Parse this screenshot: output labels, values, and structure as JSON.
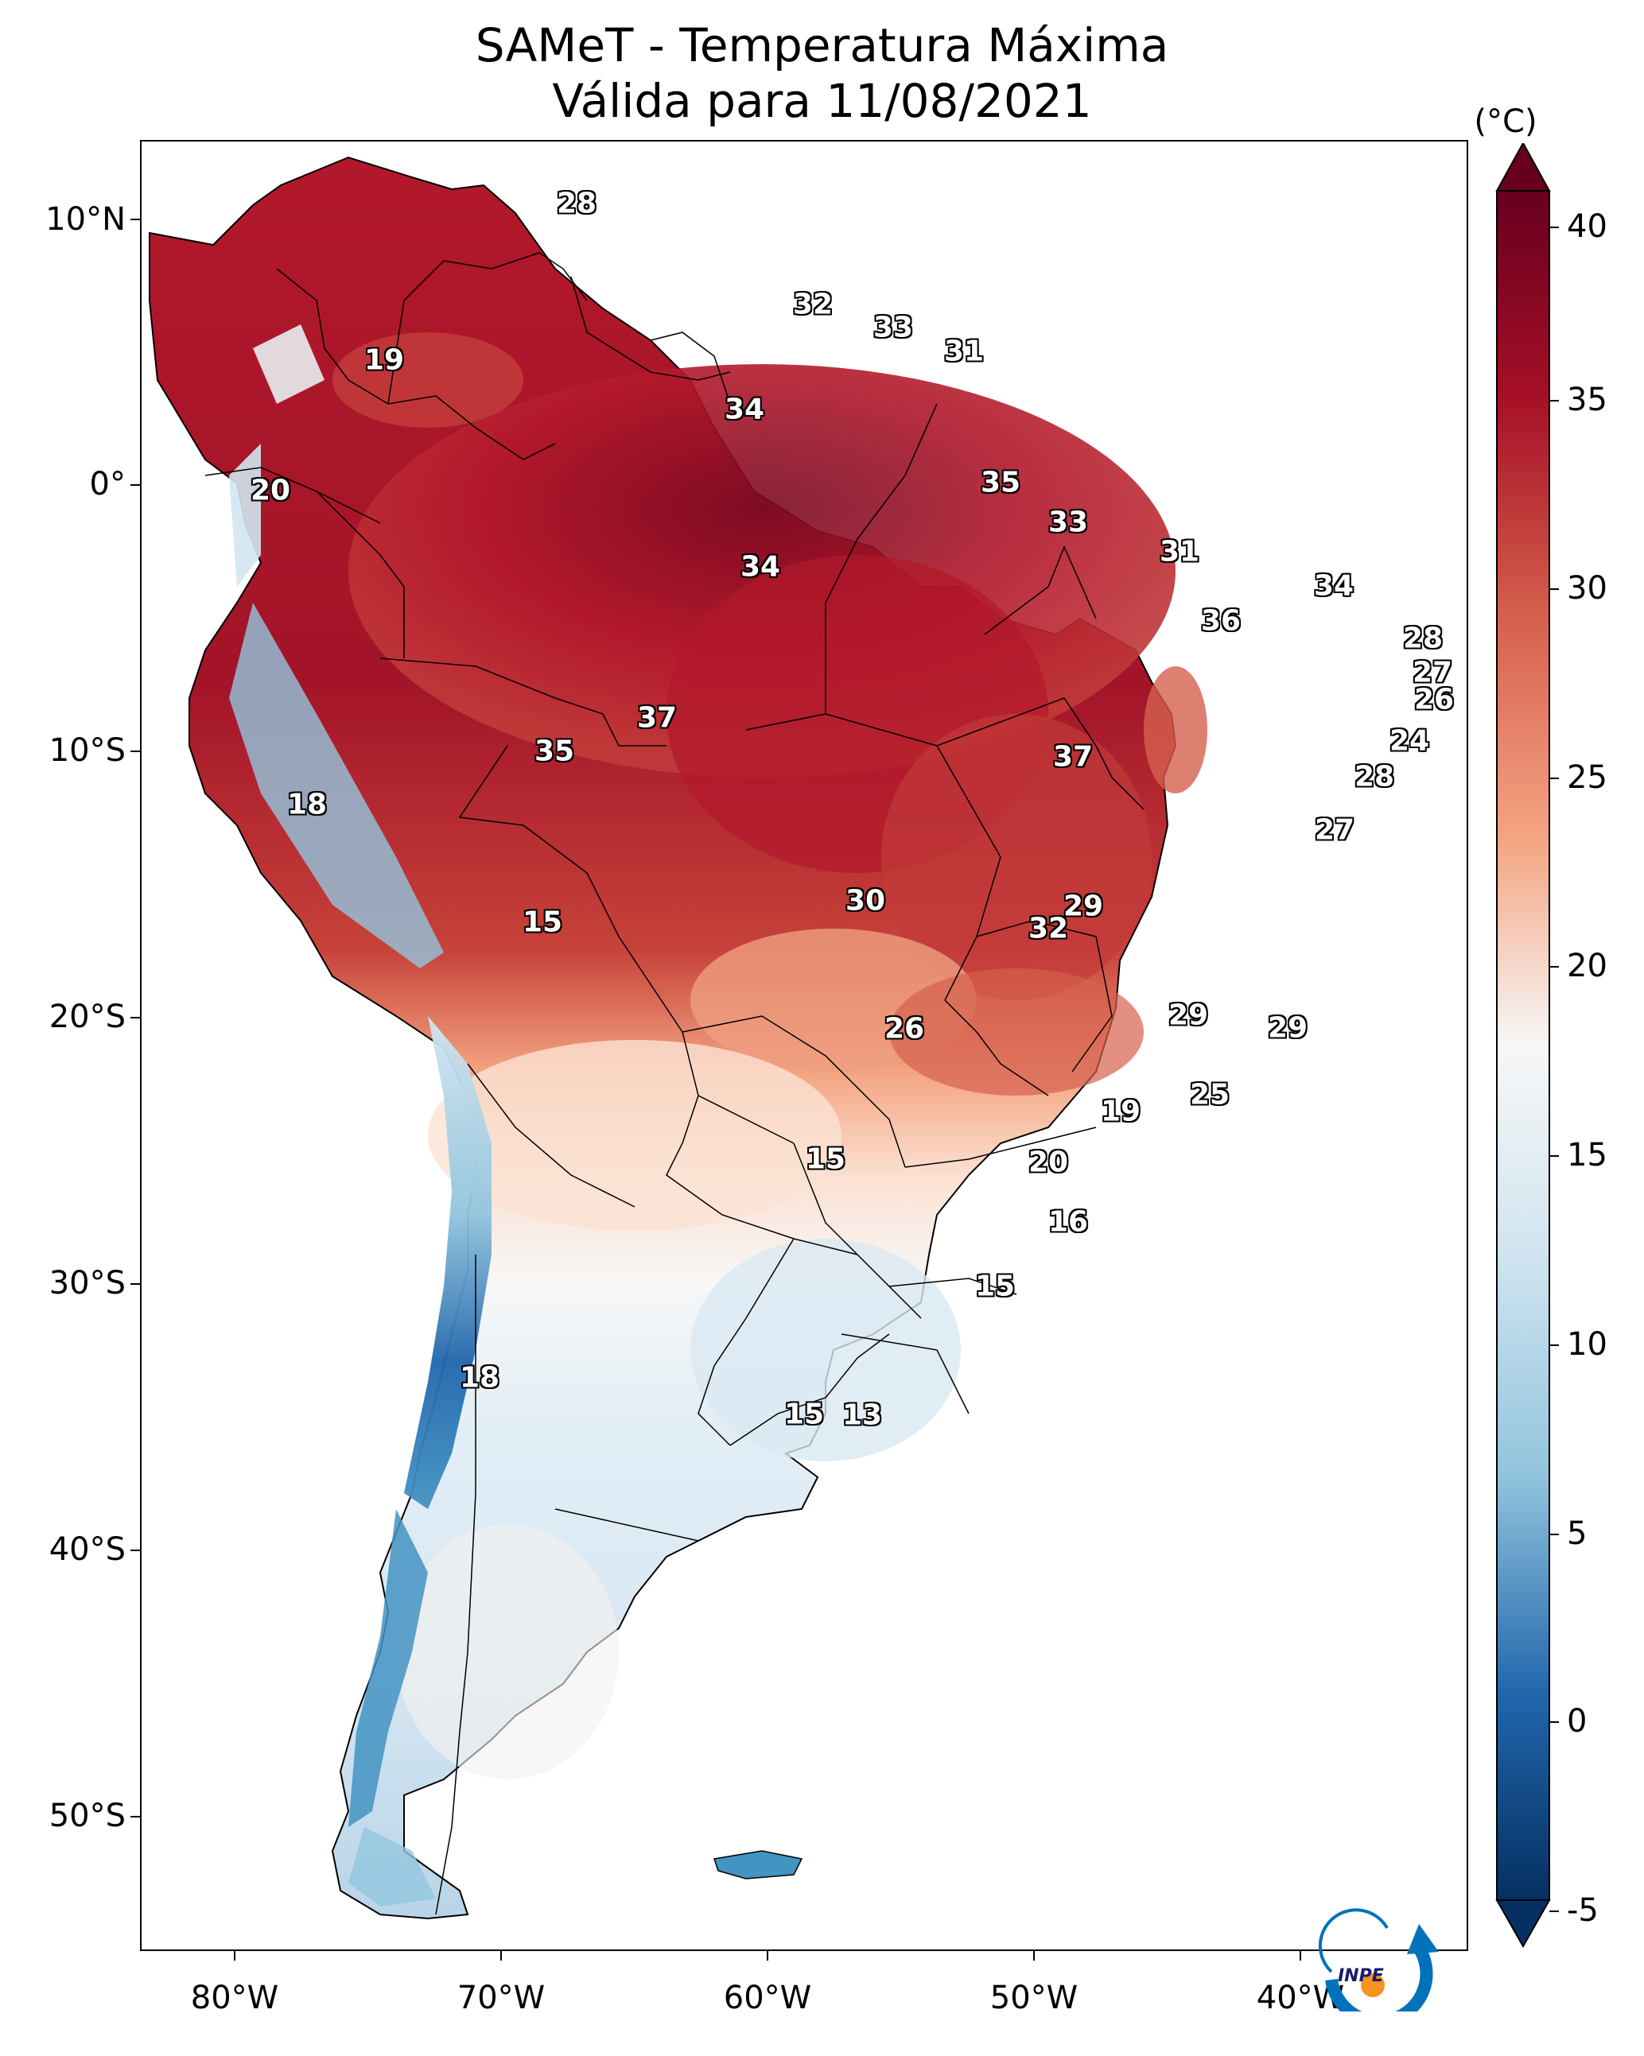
{
  "title": {
    "line1": "SAMeT - Temperatura Máxima",
    "line2": "Válida para 11/08/2021"
  },
  "lat_labels": [
    "10°N",
    "0°",
    "10°S",
    "20°S",
    "30°S",
    "40°S",
    "50°S"
  ],
  "lon_labels": [
    "80°W",
    "70°W",
    "60°W",
    "50°W",
    "40°W"
  ],
  "colorbar": {
    "unit": "(°C)",
    "ticks": [
      "40",
      "35",
      "30",
      "25",
      "20",
      "15",
      "10",
      "5",
      "0",
      "-5"
    ],
    "min": -5,
    "max": 40,
    "colors": {
      "hot": "#67001f",
      "warm": "#d6604d",
      "neutral": "#f7f7f7",
      "cool": "#4393c3",
      "cold": "#053061"
    }
  },
  "temperature_labels": [
    "28",
    "19",
    "32",
    "33",
    "31",
    "34",
    "20",
    "35",
    "33",
    "34",
    "31",
    "34",
    "36",
    "28",
    "27",
    "26",
    "37",
    "35",
    "24",
    "37",
    "18",
    "28",
    "27",
    "15",
    "30",
    "29",
    "32",
    "26",
    "29",
    "29",
    "25",
    "19",
    "20",
    "15",
    "16",
    "15",
    "18",
    "15",
    "13"
  ],
  "logo": {
    "text": "INPE",
    "accent": "#f7941d",
    "primary": "#0072bc"
  }
}
